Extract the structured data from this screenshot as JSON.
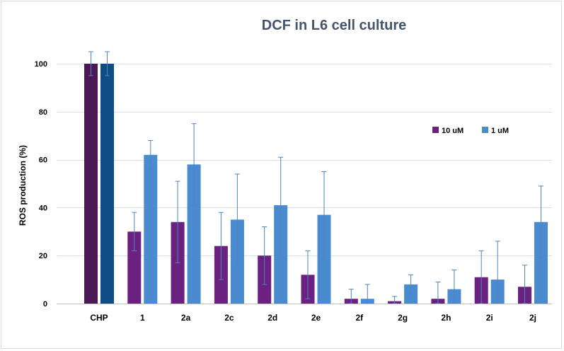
{
  "chart_data": {
    "type": "bar",
    "title": "DCF  in L6 cell culture",
    "xlabel": "",
    "ylabel": "ROS production (%)",
    "ylim": [
      0,
      100
    ],
    "yticks": [
      0,
      20,
      40,
      60,
      80,
      100
    ],
    "grid": true,
    "legend_position": "right",
    "categories": [
      "CHP",
      "1",
      "2a",
      "2c",
      "2d",
      "2e",
      "2f",
      "2g",
      "2h",
      "2i",
      "2j"
    ],
    "series": [
      {
        "name": "10 uM",
        "color": "#6a2180",
        "values": [
          100,
          30,
          34,
          24,
          20,
          12,
          2,
          1,
          2,
          11,
          7
        ],
        "errors": [
          5,
          8,
          17,
          14,
          12,
          10,
          4,
          2,
          7,
          11,
          9
        ]
      },
      {
        "name": "1 uM",
        "color": "#4a8bd0",
        "values": [
          100,
          62,
          58,
          35,
          41,
          37,
          2,
          8,
          6,
          10,
          34
        ],
        "errors": [
          5,
          6,
          17,
          19,
          20,
          18,
          6,
          4,
          8,
          16,
          15
        ]
      }
    ],
    "first_category_colors": [
      "#4a1855",
      "#0f4c85"
    ],
    "error_bar_color": "#4f84bf"
  }
}
